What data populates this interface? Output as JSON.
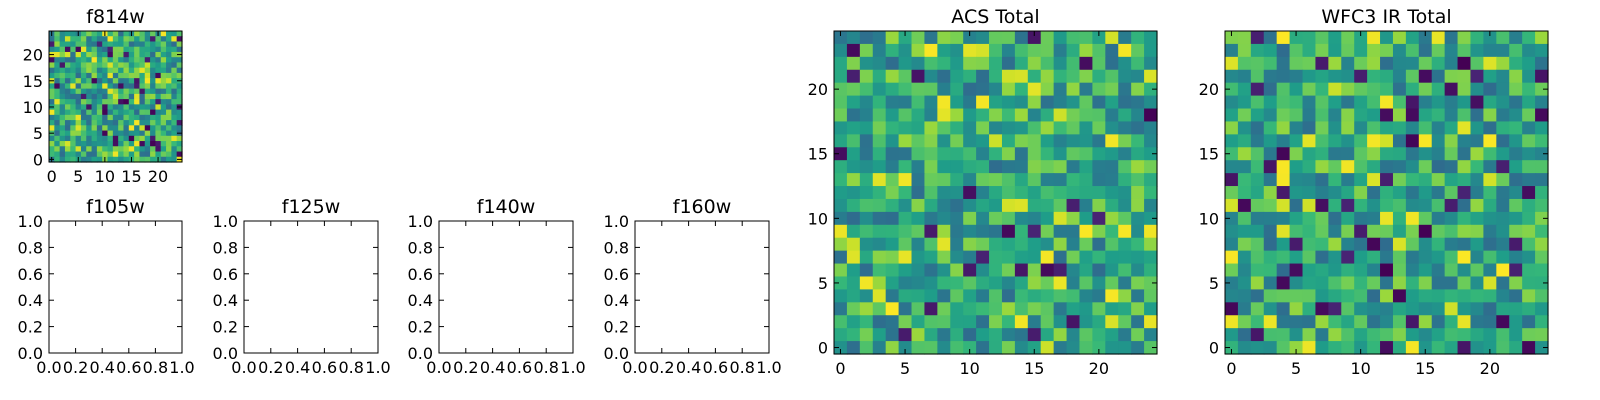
{
  "chart_data": [
    {
      "type": "heatmap",
      "title": "f814w",
      "grid_size": 25,
      "xlim": [
        -0.5,
        24.5
      ],
      "ylim": [
        -0.5,
        24.5
      ],
      "xticks": [
        0,
        5,
        10,
        15,
        20
      ],
      "yticks": [
        0,
        5,
        10,
        15,
        20
      ],
      "xtick_labels": [
        "0",
        "5",
        "10",
        "15",
        "20"
      ],
      "ytick_labels": [
        "0",
        "5",
        "10",
        "15",
        "20"
      ],
      "colormap": "viridis",
      "value_range": [
        0,
        1
      ],
      "seed": 814,
      "values_note": "25x25 grid of per-pixel values (random noise field)"
    },
    {
      "type": "heatmap",
      "title": "f105w",
      "xlim": [
        0.0,
        1.0
      ],
      "ylim": [
        0.0,
        1.0
      ],
      "xtick_labels": [
        "0.0",
        "0.2",
        "0.4",
        "0.6",
        "0.8",
        "1.0"
      ],
      "ytick_labels": [
        "0.0",
        "0.2",
        "0.4",
        "0.6",
        "0.8",
        "1.0"
      ],
      "empty": true
    },
    {
      "type": "heatmap",
      "title": "f125w",
      "xlim": [
        0.0,
        1.0
      ],
      "ylim": [
        0.0,
        1.0
      ],
      "xtick_labels": [
        "0.0",
        "0.2",
        "0.4",
        "0.6",
        "0.8",
        "1.0"
      ],
      "ytick_labels": [
        "0.0",
        "0.2",
        "0.4",
        "0.6",
        "0.8",
        "1.0"
      ],
      "empty": true
    },
    {
      "type": "heatmap",
      "title": "f140w",
      "xlim": [
        0.0,
        1.0
      ],
      "ylim": [
        0.0,
        1.0
      ],
      "xtick_labels": [
        "0.0",
        "0.2",
        "0.4",
        "0.6",
        "0.8",
        "1.0"
      ],
      "ytick_labels": [
        "0.0",
        "0.2",
        "0.4",
        "0.6",
        "0.8",
        "1.0"
      ],
      "empty": true
    },
    {
      "type": "heatmap",
      "title": "f160w",
      "xlim": [
        0.0,
        1.0
      ],
      "ylim": [
        0.0,
        1.0
      ],
      "xtick_labels": [
        "0.0",
        "0.2",
        "0.4",
        "0.6",
        "0.8",
        "1.0"
      ],
      "ytick_labels": [
        "0.0",
        "0.2",
        "0.4",
        "0.6",
        "0.8",
        "1.0"
      ],
      "empty": true
    },
    {
      "type": "heatmap",
      "title": "ACS Total",
      "grid_size": 25,
      "xlim": [
        -0.5,
        24.5
      ],
      "ylim": [
        -0.5,
        24.5
      ],
      "xticks": [
        0,
        5,
        10,
        15,
        20
      ],
      "yticks": [
        0,
        5,
        10,
        15,
        20
      ],
      "xtick_labels": [
        "0",
        "5",
        "10",
        "15",
        "20"
      ],
      "ytick_labels": [
        "0",
        "5",
        "10",
        "15",
        "20"
      ],
      "colormap": "viridis",
      "value_range": [
        0,
        1
      ],
      "seed": 42,
      "values_note": "25x25 grid of per-pixel values (random noise field)"
    },
    {
      "type": "heatmap",
      "title": "WFC3 IR Total",
      "grid_size": 25,
      "xlim": [
        -0.5,
        24.5
      ],
      "ylim": [
        -0.5,
        24.5
      ],
      "xticks": [
        0,
        5,
        10,
        15,
        20
      ],
      "yticks": [
        0,
        5,
        10,
        15,
        20
      ],
      "xtick_labels": [
        "0",
        "5",
        "10",
        "15",
        "20"
      ],
      "ytick_labels": [
        "0",
        "5",
        "10",
        "15",
        "20"
      ],
      "colormap": "viridis",
      "value_range": [
        0,
        1
      ],
      "seed": 7,
      "values_note": "25x25 grid of per-pixel values (random noise field)"
    }
  ]
}
